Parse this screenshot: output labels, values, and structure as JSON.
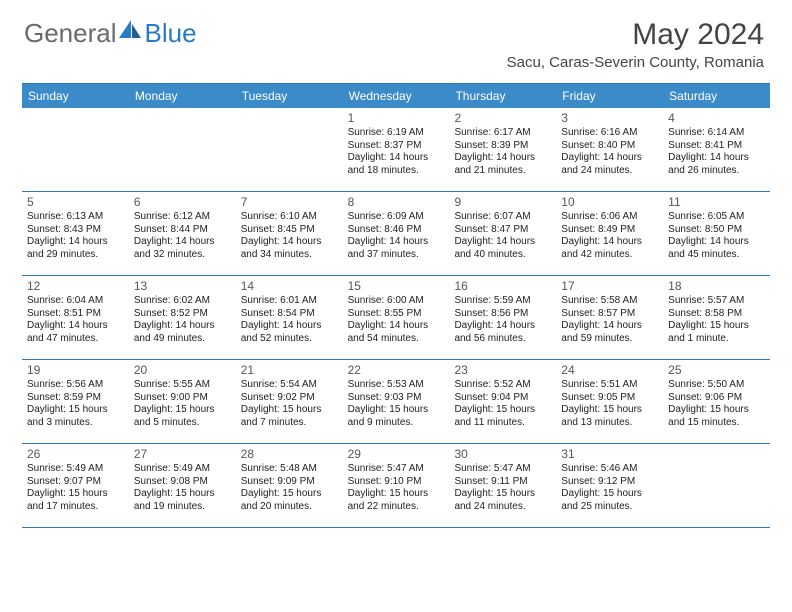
{
  "brand": {
    "part1": "General",
    "part2": "Blue"
  },
  "title": "May 2024",
  "location": "Sacu, Caras-Severin County, Romania",
  "colors": {
    "header_bg": "#3b8bc9",
    "rule": "#2a7cc2",
    "text": "#222222",
    "title": "#444444"
  },
  "day_headers": [
    "Sunday",
    "Monday",
    "Tuesday",
    "Wednesday",
    "Thursday",
    "Friday",
    "Saturday"
  ],
  "weeks": [
    [
      null,
      null,
      null,
      {
        "n": "1",
        "sr": "6:19 AM",
        "ss": "8:37 PM",
        "dl": "14 hours and 18 minutes."
      },
      {
        "n": "2",
        "sr": "6:17 AM",
        "ss": "8:39 PM",
        "dl": "14 hours and 21 minutes."
      },
      {
        "n": "3",
        "sr": "6:16 AM",
        "ss": "8:40 PM",
        "dl": "14 hours and 24 minutes."
      },
      {
        "n": "4",
        "sr": "6:14 AM",
        "ss": "8:41 PM",
        "dl": "14 hours and 26 minutes."
      }
    ],
    [
      {
        "n": "5",
        "sr": "6:13 AM",
        "ss": "8:43 PM",
        "dl": "14 hours and 29 minutes."
      },
      {
        "n": "6",
        "sr": "6:12 AM",
        "ss": "8:44 PM",
        "dl": "14 hours and 32 minutes."
      },
      {
        "n": "7",
        "sr": "6:10 AM",
        "ss": "8:45 PM",
        "dl": "14 hours and 34 minutes."
      },
      {
        "n": "8",
        "sr": "6:09 AM",
        "ss": "8:46 PM",
        "dl": "14 hours and 37 minutes."
      },
      {
        "n": "9",
        "sr": "6:07 AM",
        "ss": "8:47 PM",
        "dl": "14 hours and 40 minutes."
      },
      {
        "n": "10",
        "sr": "6:06 AM",
        "ss": "8:49 PM",
        "dl": "14 hours and 42 minutes."
      },
      {
        "n": "11",
        "sr": "6:05 AM",
        "ss": "8:50 PM",
        "dl": "14 hours and 45 minutes."
      }
    ],
    [
      {
        "n": "12",
        "sr": "6:04 AM",
        "ss": "8:51 PM",
        "dl": "14 hours and 47 minutes."
      },
      {
        "n": "13",
        "sr": "6:02 AM",
        "ss": "8:52 PM",
        "dl": "14 hours and 49 minutes."
      },
      {
        "n": "14",
        "sr": "6:01 AM",
        "ss": "8:54 PM",
        "dl": "14 hours and 52 minutes."
      },
      {
        "n": "15",
        "sr": "6:00 AM",
        "ss": "8:55 PM",
        "dl": "14 hours and 54 minutes."
      },
      {
        "n": "16",
        "sr": "5:59 AM",
        "ss": "8:56 PM",
        "dl": "14 hours and 56 minutes."
      },
      {
        "n": "17",
        "sr": "5:58 AM",
        "ss": "8:57 PM",
        "dl": "14 hours and 59 minutes."
      },
      {
        "n": "18",
        "sr": "5:57 AM",
        "ss": "8:58 PM",
        "dl": "15 hours and 1 minute."
      }
    ],
    [
      {
        "n": "19",
        "sr": "5:56 AM",
        "ss": "8:59 PM",
        "dl": "15 hours and 3 minutes."
      },
      {
        "n": "20",
        "sr": "5:55 AM",
        "ss": "9:00 PM",
        "dl": "15 hours and 5 minutes."
      },
      {
        "n": "21",
        "sr": "5:54 AM",
        "ss": "9:02 PM",
        "dl": "15 hours and 7 minutes."
      },
      {
        "n": "22",
        "sr": "5:53 AM",
        "ss": "9:03 PM",
        "dl": "15 hours and 9 minutes."
      },
      {
        "n": "23",
        "sr": "5:52 AM",
        "ss": "9:04 PM",
        "dl": "15 hours and 11 minutes."
      },
      {
        "n": "24",
        "sr": "5:51 AM",
        "ss": "9:05 PM",
        "dl": "15 hours and 13 minutes."
      },
      {
        "n": "25",
        "sr": "5:50 AM",
        "ss": "9:06 PM",
        "dl": "15 hours and 15 minutes."
      }
    ],
    [
      {
        "n": "26",
        "sr": "5:49 AM",
        "ss": "9:07 PM",
        "dl": "15 hours and 17 minutes."
      },
      {
        "n": "27",
        "sr": "5:49 AM",
        "ss": "9:08 PM",
        "dl": "15 hours and 19 minutes."
      },
      {
        "n": "28",
        "sr": "5:48 AM",
        "ss": "9:09 PM",
        "dl": "15 hours and 20 minutes."
      },
      {
        "n": "29",
        "sr": "5:47 AM",
        "ss": "9:10 PM",
        "dl": "15 hours and 22 minutes."
      },
      {
        "n": "30",
        "sr": "5:47 AM",
        "ss": "9:11 PM",
        "dl": "15 hours and 24 minutes."
      },
      {
        "n": "31",
        "sr": "5:46 AM",
        "ss": "9:12 PM",
        "dl": "15 hours and 25 minutes."
      },
      null
    ]
  ],
  "labels": {
    "sunrise": "Sunrise:",
    "sunset": "Sunset:",
    "daylight": "Daylight:"
  }
}
